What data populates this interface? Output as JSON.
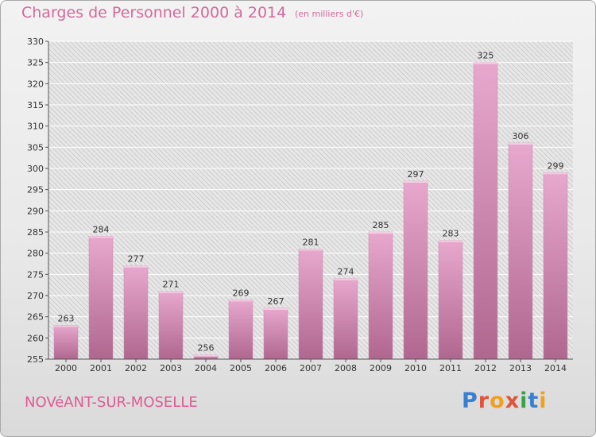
{
  "header": {
    "title": "Charges de Personnel 2000 à 2014",
    "unit": "(en milliers d'€)"
  },
  "footer": {
    "place": "NOVéANT-SUR-MOSELLE",
    "logo_text": "Proxiti"
  },
  "colors": {
    "bar_top": "#e8a8ce",
    "bar_bottom": "#b0678f",
    "accent": "#d26a9a"
  },
  "chart_data": {
    "type": "bar",
    "title": "Charges de Personnel 2000 à 2014",
    "subtitle": "(en milliers d'€)",
    "categories": [
      "2000",
      "2001",
      "2002",
      "2003",
      "2004",
      "2005",
      "2006",
      "2007",
      "2008",
      "2009",
      "2010",
      "2011",
      "2012",
      "2013",
      "2014"
    ],
    "values": [
      263,
      284,
      277,
      271,
      256,
      269,
      267,
      281,
      274,
      285,
      297,
      283,
      325,
      306,
      299
    ],
    "ylim": [
      255,
      330
    ],
    "yticks": [
      255,
      260,
      265,
      270,
      275,
      280,
      285,
      290,
      295,
      300,
      305,
      310,
      315,
      320,
      325,
      330
    ],
    "grid": true,
    "legend": "none",
    "data_labels": true
  }
}
